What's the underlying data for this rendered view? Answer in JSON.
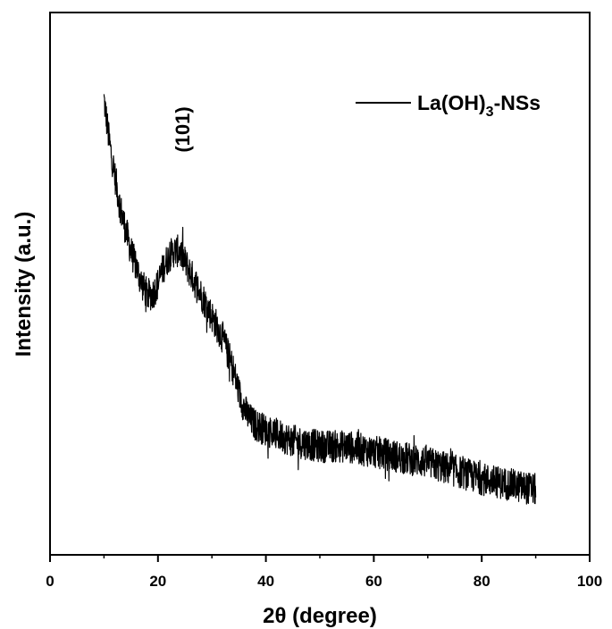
{
  "chart_data": {
    "type": "line",
    "xlabel": "2θ (degree)",
    "ylabel": "Intensity (a.u.)",
    "xlim": [
      0,
      100
    ],
    "ylim": [
      0,
      1
    ],
    "x_ticks": [
      "0",
      "20",
      "40",
      "60",
      "80",
      "100"
    ],
    "y_ticks_labeled": false,
    "grid": false,
    "legend": {
      "placement": "top-right"
    },
    "annotations": [
      {
        "text": "(101)",
        "x": 24,
        "orientation": "vertical"
      }
    ],
    "series": [
      {
        "name": "La(OH)3-NSs",
        "color": "#000000",
        "noise_amplitude": 0.03,
        "x": [
          10,
          11,
          12,
          13,
          14,
          15,
          16,
          17,
          18,
          19,
          20,
          21,
          22,
          23,
          24,
          25,
          26,
          27,
          28,
          29,
          30,
          31,
          32,
          33,
          34,
          35,
          36,
          37,
          38,
          40,
          45,
          50,
          55,
          60,
          65,
          70,
          75,
          80,
          85,
          90
        ],
        "y": [
          0.84,
          0.76,
          0.7,
          0.64,
          0.6,
          0.56,
          0.53,
          0.5,
          0.48,
          0.48,
          0.5,
          0.53,
          0.55,
          0.56,
          0.56,
          0.54,
          0.52,
          0.5,
          0.48,
          0.46,
          0.44,
          0.42,
          0.4,
          0.37,
          0.34,
          0.3,
          0.27,
          0.25,
          0.24,
          0.23,
          0.21,
          0.2,
          0.2,
          0.19,
          0.18,
          0.17,
          0.155,
          0.14,
          0.13,
          0.12
        ]
      }
    ]
  }
}
